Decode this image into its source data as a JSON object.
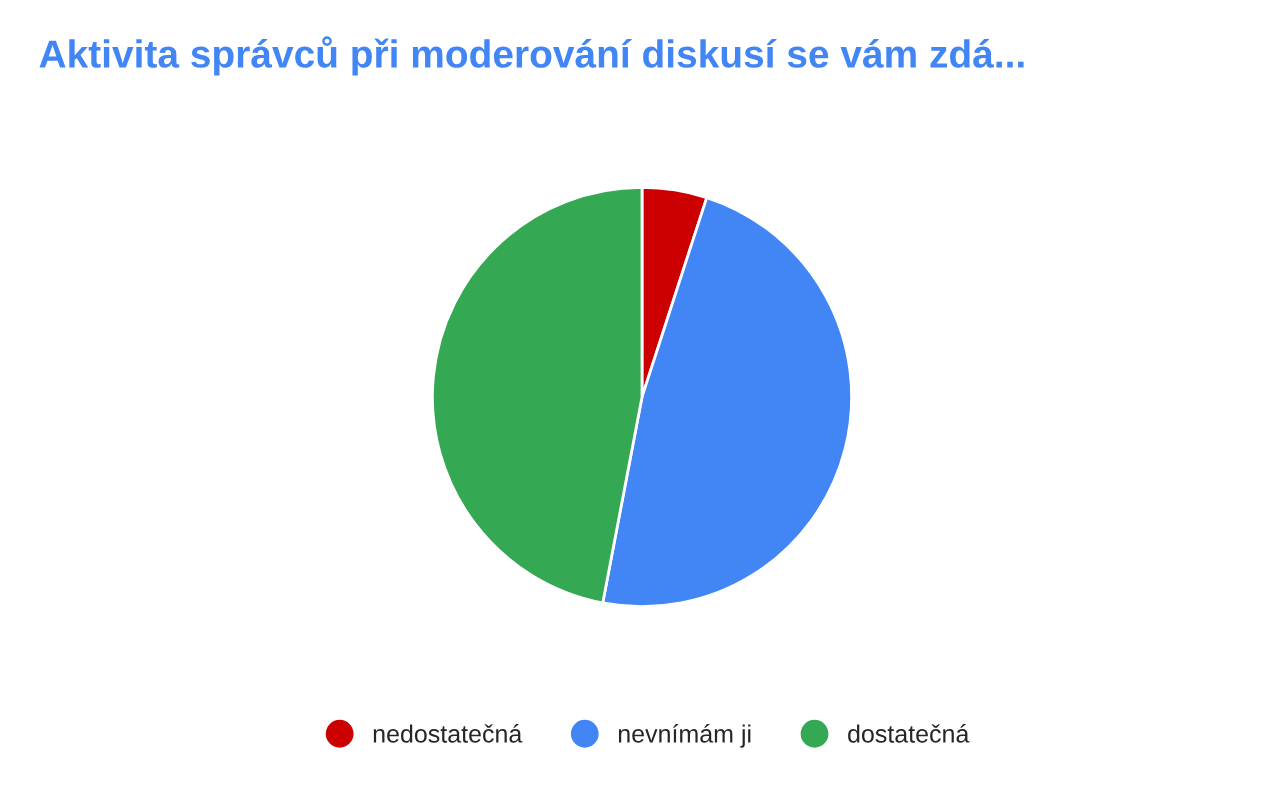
{
  "chart_data": {
    "type": "pie",
    "title": "Aktivita správců při moderování diskusí se vám zdá...",
    "categories": [
      "nedostatečná",
      "nevnímám ji",
      "dostatečná"
    ],
    "values": [
      5,
      48,
      47
    ],
    "colors": [
      "#cc0000",
      "#4285f4",
      "#34a853"
    ],
    "legend": "bottom"
  }
}
